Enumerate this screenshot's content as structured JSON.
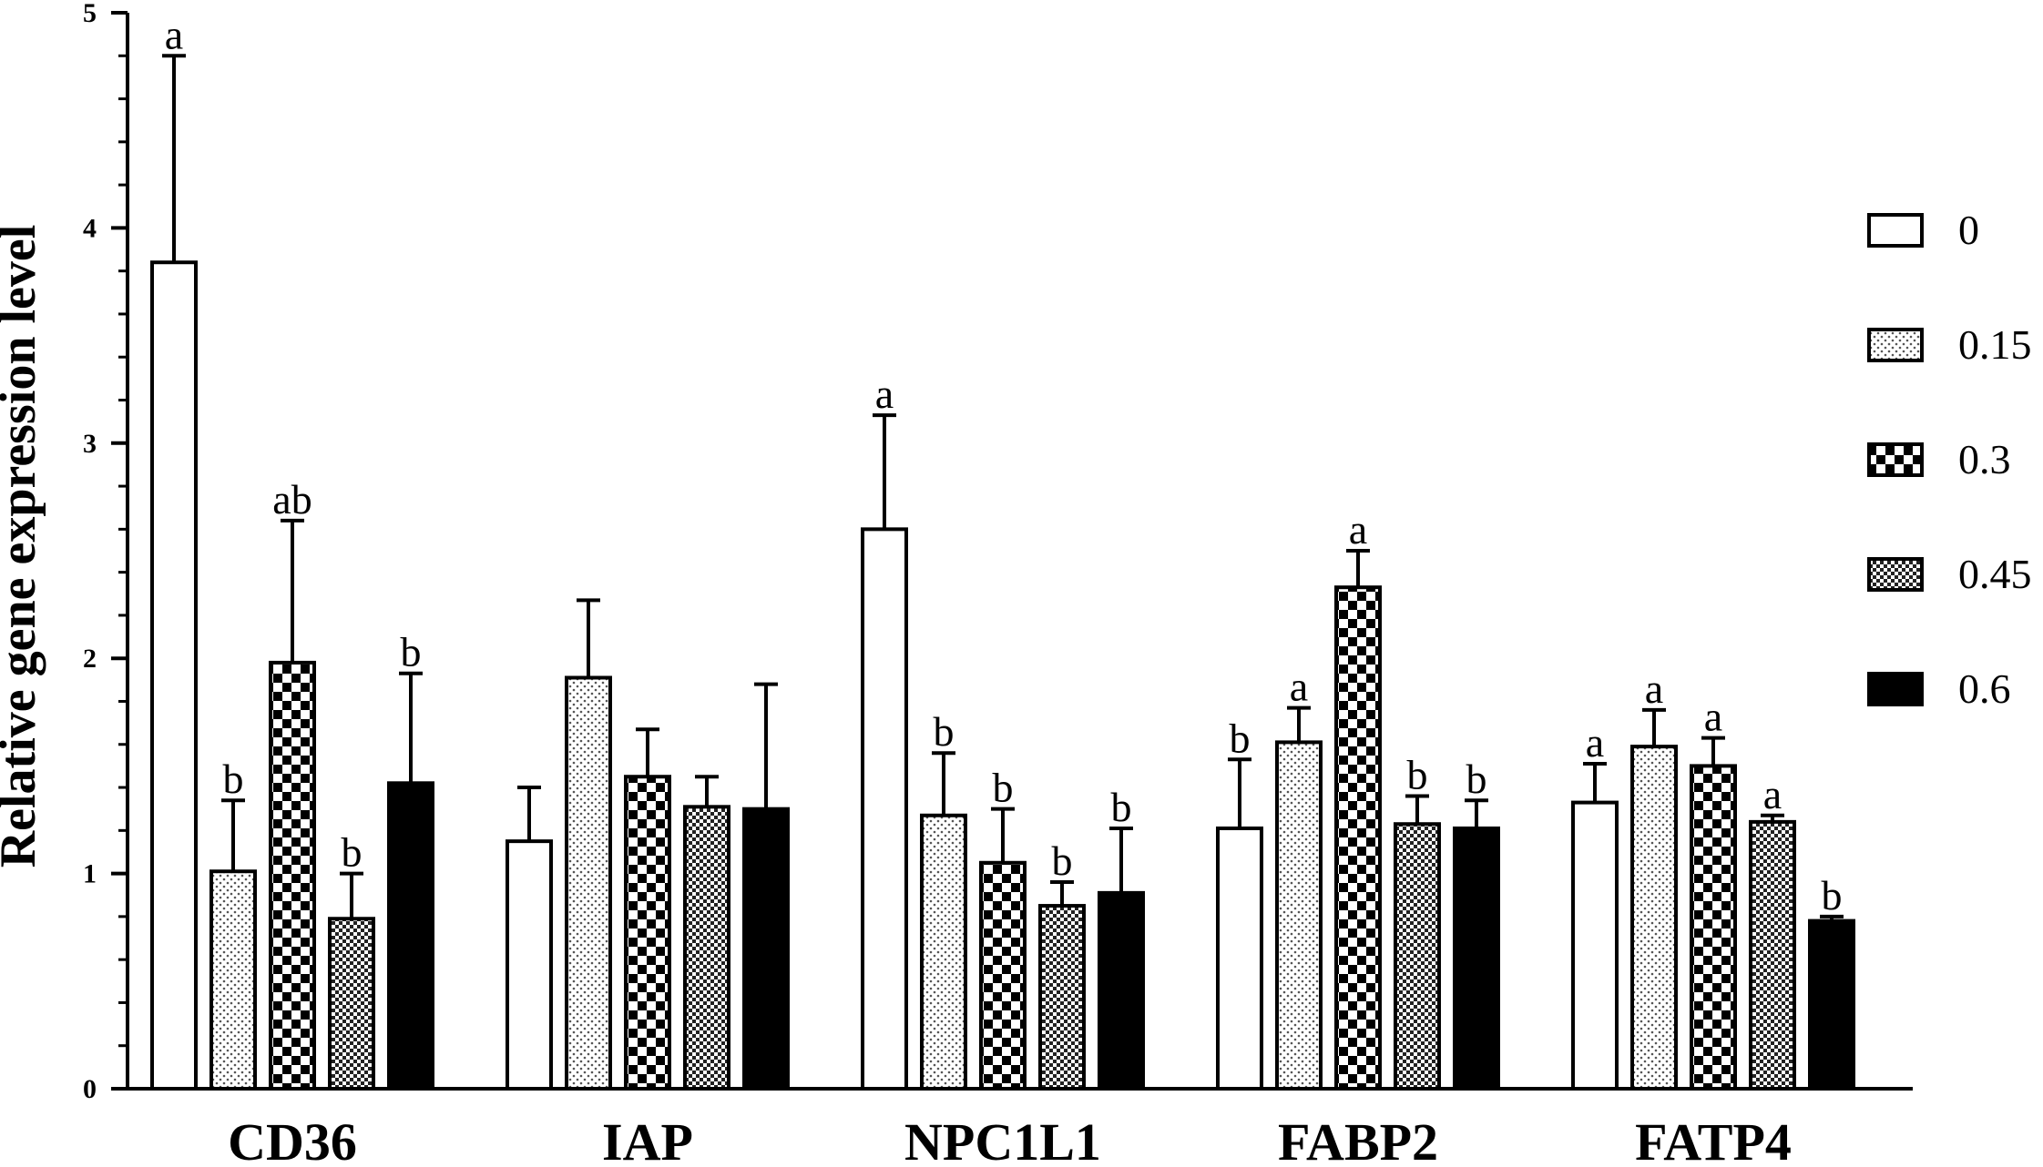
{
  "chart_data": {
    "type": "bar",
    "title": "",
    "xlabel": "",
    "ylabel": "Relative gene expression level",
    "ylim": [
      0,
      5
    ],
    "yticks": [
      0,
      1,
      2,
      3,
      4,
      5
    ],
    "grid": false,
    "legend_position": "right",
    "categories": [
      "CD36",
      "IAP",
      "NPC1L1",
      "FABP2",
      "FATP4"
    ],
    "series": [
      {
        "name": "0",
        "pattern": "white",
        "values": [
          3.84,
          1.15,
          2.6,
          1.21,
          1.33
        ],
        "errors": [
          0.96,
          0.25,
          0.53,
          0.32,
          0.18
        ],
        "labels": [
          "a",
          "",
          "a",
          "b",
          "a"
        ]
      },
      {
        "name": "0.15",
        "pattern": "dotted",
        "values": [
          1.01,
          1.91,
          1.27,
          1.61,
          1.59
        ],
        "errors": [
          0.33,
          0.36,
          0.29,
          0.16,
          0.17
        ],
        "labels": [
          "b",
          "",
          "b",
          "a",
          "a"
        ]
      },
      {
        "name": "0.3",
        "pattern": "checker",
        "values": [
          1.98,
          1.45,
          1.05,
          2.33,
          1.5
        ],
        "errors": [
          0.66,
          0.22,
          0.25,
          0.17,
          0.13
        ],
        "labels": [
          "ab",
          "",
          "b",
          "a",
          "a"
        ]
      },
      {
        "name": "0.45",
        "pattern": "fine-checker",
        "values": [
          0.79,
          1.31,
          0.85,
          1.23,
          1.24
        ],
        "errors": [
          0.21,
          0.14,
          0.11,
          0.13,
          0.03
        ],
        "labels": [
          "b",
          "",
          "b",
          "b",
          "a"
        ]
      },
      {
        "name": "0.6",
        "pattern": "black",
        "values": [
          1.42,
          1.3,
          0.91,
          1.21,
          0.78
        ],
        "errors": [
          0.51,
          0.58,
          0.3,
          0.13,
          0.02
        ],
        "labels": [
          "b",
          "",
          "b",
          "b",
          "b"
        ]
      }
    ]
  }
}
